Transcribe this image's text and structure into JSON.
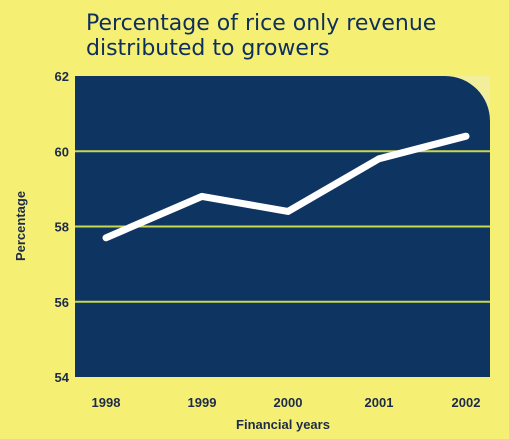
{
  "chart_data": {
    "type": "line",
    "title": [
      "Percentage of rice only revenue",
      "distributed to growers"
    ],
    "xlabel": "Financial years",
    "ylabel": "Percentage",
    "categories": [
      "1998",
      "1999",
      "2000",
      "2001",
      "2002"
    ],
    "series": [
      {
        "values": [
          57.7,
          58.8,
          58.4,
          59.8,
          60.4
        ]
      }
    ],
    "ylim": [
      54,
      62
    ],
    "yticks": [
      54,
      56,
      58,
      60,
      62
    ],
    "grid": true,
    "colors": {
      "background": "#f5f073",
      "plot_area": "#0e3462",
      "plot_corner_accent": "#f3ee9c",
      "gridline": "#c8d84e",
      "line": "#ffffff",
      "text": "#1d2a4a"
    }
  }
}
